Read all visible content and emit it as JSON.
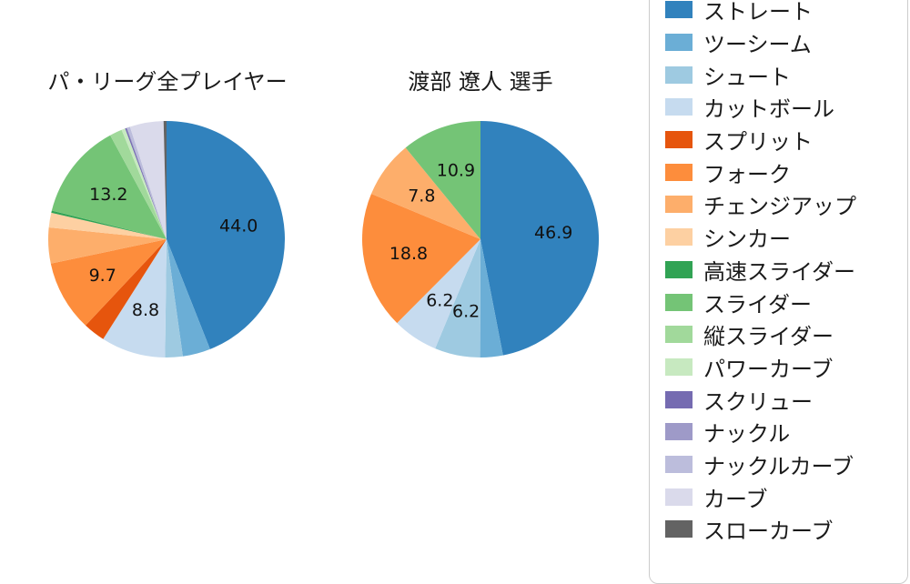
{
  "page": {
    "background": "#ffffff"
  },
  "chart_data": [
    {
      "type": "pie",
      "title": "パ・リーグ全プレイヤー",
      "unit": "percent",
      "start_angle": "top",
      "direction": "clockwise",
      "label_distance": 0.62,
      "slices": [
        {
          "label": "ストレート",
          "value": 44.0,
          "color": "#3182bd",
          "value_label": "44.0"
        },
        {
          "label": "ツーシーム",
          "value": 3.8,
          "color": "#6baed6",
          "value_label": ""
        },
        {
          "label": "シュート",
          "value": 2.4,
          "color": "#9ecae1",
          "value_label": ""
        },
        {
          "label": "カットボール",
          "value": 8.8,
          "color": "#c6dbef",
          "value_label": "8.8"
        },
        {
          "label": "スプリット",
          "value": 3.0,
          "color": "#e6550d",
          "value_label": ""
        },
        {
          "label": "フォーク",
          "value": 9.7,
          "color": "#fd8d3c",
          "value_label": "9.7"
        },
        {
          "label": "チェンジアップ",
          "value": 4.9,
          "color": "#fdae6b",
          "value_label": ""
        },
        {
          "label": "シンカー",
          "value": 2.0,
          "color": "#fdd0a2",
          "value_label": ""
        },
        {
          "label": "高速スライダー",
          "value": 0.3,
          "color": "#31a354",
          "value_label": ""
        },
        {
          "label": "スライダー",
          "value": 13.2,
          "color": "#74c476",
          "value_label": "13.2"
        },
        {
          "label": "縦スライダー",
          "value": 1.7,
          "color": "#a1d99b",
          "value_label": ""
        },
        {
          "label": "パワーカーブ",
          "value": 0.5,
          "color": "#c7e9c0",
          "value_label": ""
        },
        {
          "label": "スクリュー",
          "value": 0.2,
          "color": "#756bb1",
          "value_label": ""
        },
        {
          "label": "ナックル",
          "value": 0.1,
          "color": "#9e9ac8",
          "value_label": ""
        },
        {
          "label": "ナックルカーブ",
          "value": 0.4,
          "color": "#bcbddc",
          "value_label": ""
        },
        {
          "label": "カーブ",
          "value": 4.6,
          "color": "#dadaeb",
          "value_label": ""
        },
        {
          "label": "スローカーブ",
          "value": 0.4,
          "color": "#636363",
          "value_label": ""
        }
      ]
    },
    {
      "type": "pie",
      "title": "渡部 遼人 選手",
      "unit": "percent",
      "start_angle": "top",
      "direction": "clockwise",
      "label_distance": 0.62,
      "slices": [
        {
          "label": "ストレート",
          "value": 46.9,
          "color": "#3182bd",
          "value_label": "46.9"
        },
        {
          "label": "ツーシーム",
          "value": 3.1,
          "color": "#6baed6",
          "value_label": ""
        },
        {
          "label": "シュート",
          "value": 6.2,
          "color": "#9ecae1",
          "value_label": "6.2"
        },
        {
          "label": "カットボール",
          "value": 6.2,
          "color": "#c6dbef",
          "value_label": "6.2"
        },
        {
          "label": "フォーク",
          "value": 18.8,
          "color": "#fd8d3c",
          "value_label": "18.8"
        },
        {
          "label": "チェンジアップ",
          "value": 7.8,
          "color": "#fdae6b",
          "value_label": "7.8"
        },
        {
          "label": "スライダー",
          "value": 10.9,
          "color": "#74c476",
          "value_label": "10.9"
        }
      ]
    }
  ],
  "legend": {
    "items": [
      {
        "label": "ストレート",
        "color": "#3182bd"
      },
      {
        "label": "ツーシーム",
        "color": "#6baed6"
      },
      {
        "label": "シュート",
        "color": "#9ecae1"
      },
      {
        "label": "カットボール",
        "color": "#c6dbef"
      },
      {
        "label": "スプリット",
        "color": "#e6550d"
      },
      {
        "label": "フォーク",
        "color": "#fd8d3c"
      },
      {
        "label": "チェンジアップ",
        "color": "#fdae6b"
      },
      {
        "label": "シンカー",
        "color": "#fdd0a2"
      },
      {
        "label": "高速スライダー",
        "color": "#31a354"
      },
      {
        "label": "スライダー",
        "color": "#74c476"
      },
      {
        "label": "縦スライダー",
        "color": "#a1d99b"
      },
      {
        "label": "パワーカーブ",
        "color": "#c7e9c0"
      },
      {
        "label": "スクリュー",
        "color": "#756bb1"
      },
      {
        "label": "ナックル",
        "color": "#9e9ac8"
      },
      {
        "label": "ナックルカーブ",
        "color": "#bcbddc"
      },
      {
        "label": "カーブ",
        "color": "#dadaeb"
      },
      {
        "label": "スローカーブ",
        "color": "#636363"
      }
    ]
  }
}
